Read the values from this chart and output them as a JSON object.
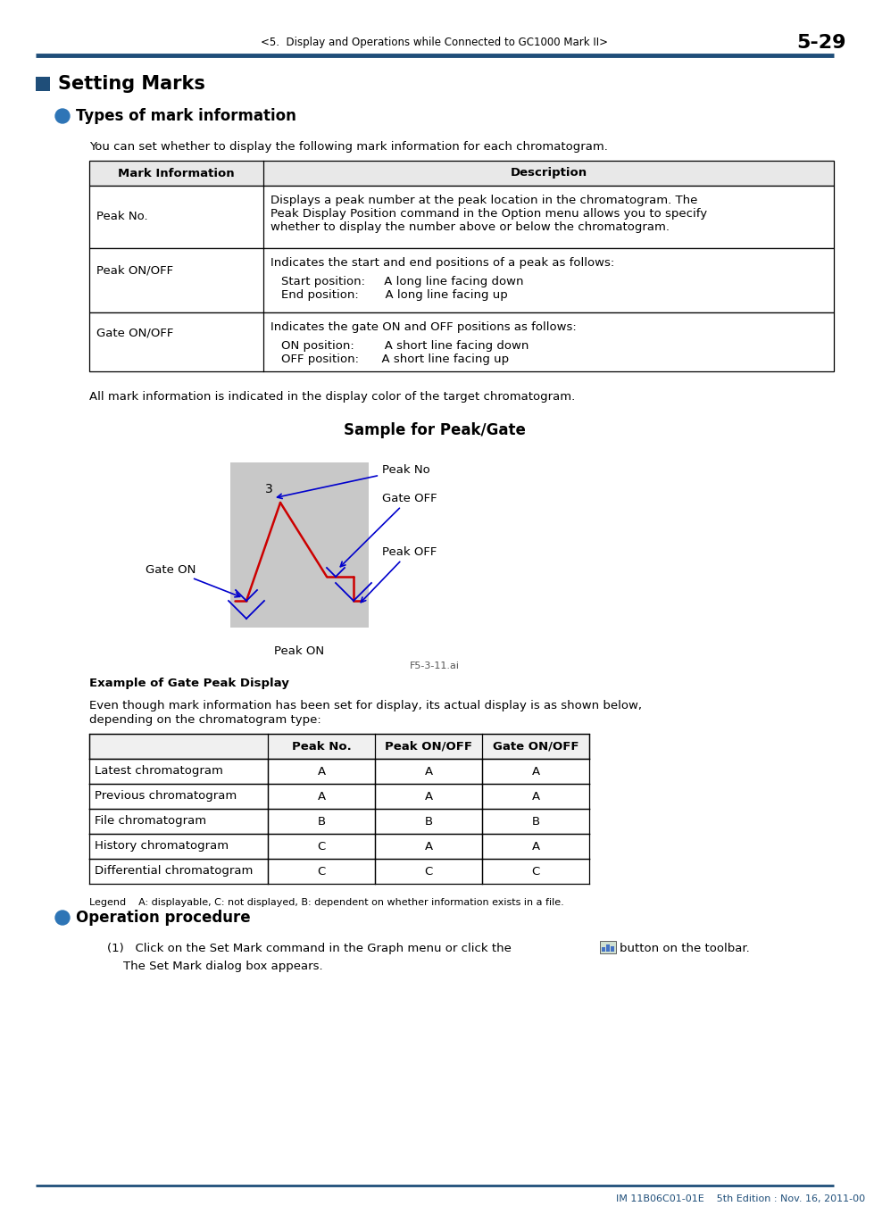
{
  "page_header": "<5.  Display and Operations while Connected to GC1000 Mark II>",
  "page_number": "5-29",
  "header_line_color": "#1f4e79",
  "section_title": "Setting Marks",
  "section_square_color": "#1f4e79",
  "subsection1_title": "Types of mark information",
  "subsection_dot_color": "#2e75b6",
  "intro_text": "You can set whether to display the following mark information for each chromatogram.",
  "table1_headers": [
    "Mark Information",
    "Description"
  ],
  "table1_row0_left": "Peak No.",
  "table1_row0_right_line1": "Displays a peak number at the peak location in the chromatogram. The",
  "table1_row0_right_line2": "Peak Display Position command in the Option menu allows you to specify",
  "table1_row0_right_line3": "whether to display the number above or below the chromatogram.",
  "table1_row1_left": "Peak ON/OFF",
  "table1_row1_right_line1": "Indicates the start and end positions of a peak as follows:",
  "table1_row1_right_line2": "Start position:     A long line facing down",
  "table1_row1_right_line3": "End position:       A long line facing up",
  "table1_row2_left": "Gate ON/OFF",
  "table1_row2_right_line1": "Indicates the gate ON and OFF positions as follows:",
  "table1_row2_right_line2": "ON position:        A short line facing down",
  "table1_row2_right_line3": "OFF position:      A short line facing up",
  "all_mark_text": "All mark information is indicated in the display color of the target chromatogram.",
  "sample_title": "Sample for Peak/Gate",
  "figure_label": "F5-3-11.ai",
  "caption_bold": "Example of Gate Peak Display",
  "body_text_line1": "Even though mark information has been set for display, its actual display is as shown below,",
  "body_text_line2": "depending on the chromatogram type:",
  "table2_headers": [
    "",
    "Peak No.",
    "Peak ON/OFF",
    "Gate ON/OFF"
  ],
  "table2_rows": [
    [
      "Latest chromatogram",
      "A",
      "A",
      "A"
    ],
    [
      "Previous chromatogram",
      "A",
      "A",
      "A"
    ],
    [
      "File chromatogram",
      "B",
      "B",
      "B"
    ],
    [
      "History chromatogram",
      "C",
      "A",
      "A"
    ],
    [
      "Differential chromatogram",
      "C",
      "C",
      "C"
    ]
  ],
  "legend_text": "Legend    A: displayable, C: not displayed, B: dependent on whether information exists in a file.",
  "subsection2_title": "Operation procedure",
  "op_line1_pre": "(1)   Click on the Set Mark command in the Graph menu or click the",
  "op_line1_post": "button on the toolbar.",
  "op_line2": "The Set Mark dialog box appears.",
  "footer_text": "IM 11B06C01-01E    5th Edition : Nov. 16, 2011-00",
  "bg_color": "#ffffff",
  "text_color": "#000000",
  "table_border_color": "#000000",
  "gray_box_color": "#c8c8c8",
  "blue_arrow_color": "#0000cc",
  "red_line_color": "#cc0000"
}
